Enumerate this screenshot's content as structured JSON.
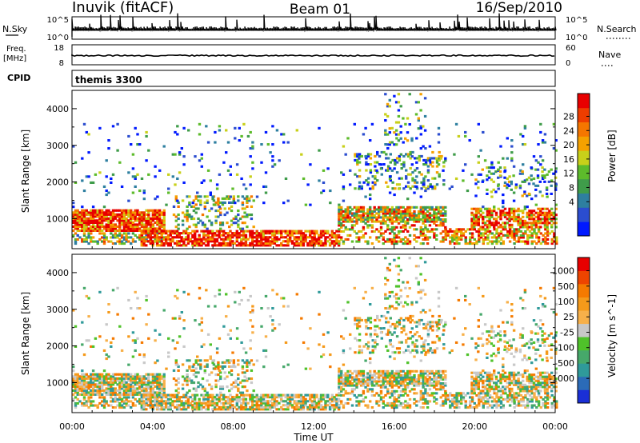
{
  "header": {
    "station": "Inuvik (fitACF)",
    "beam": "Beam 01",
    "date": "16/Sep/2010"
  },
  "top_panels": {
    "nsky_label": "N.Sky",
    "nsky_ticks": [
      "10^5",
      "10^0"
    ],
    "nsearch_label": "N.Search",
    "nsearch_ticks": [
      "10^5",
      "10^0"
    ],
    "freq_label": "Freq.",
    "freq_unit": "[MHz]",
    "freq_ticks": [
      "18",
      "8"
    ],
    "nave_label": "Nave",
    "nave_ticks": [
      "60",
      "0"
    ],
    "cpid_label": "CPID",
    "cpid_value": "themis 3300"
  },
  "chart_data": [
    {
      "type": "heatmap",
      "panel": "power",
      "ylabel": "Slant Range [km]",
      "ylim": [
        180,
        4500
      ],
      "xlim": [
        0,
        24
      ],
      "yticks": [
        "1000",
        "2000",
        "3000",
        "4000"
      ],
      "colorbar": {
        "label": "Power [dB]",
        "ticks": [
          "28",
          "24",
          "20",
          "16",
          "12",
          "8",
          "4"
        ],
        "colors": [
          "#0019ff",
          "#2b4dcf",
          "#2e7fa0",
          "#3f9c4a",
          "#5dbb2b",
          "#c8d01a",
          "#f5a100",
          "#f57600",
          "#ee3d00",
          "#e80000"
        ],
        "range": [
          0,
          30
        ]
      }
    },
    {
      "type": "heatmap",
      "panel": "velocity",
      "ylabel": "Slant Range [km]",
      "ylim": [
        180,
        4500
      ],
      "xlim": [
        0,
        24
      ],
      "yticks": [
        "1000",
        "2000",
        "3000",
        "4000"
      ],
      "colorbar": {
        "label": "Velocity [m s^-1]",
        "ticks": [
          "1000",
          "500",
          "100",
          "25",
          "-25",
          "-100",
          "-500",
          "-1000"
        ],
        "colors": [
          "#1a2fd6",
          "#2b6bb8",
          "#2f9a9a",
          "#46a86a",
          "#4fc22a",
          "#c8c8c8",
          "#f7b04a",
          "#f59a1a",
          "#f57a00",
          "#ee4400",
          "#e80000"
        ]
      }
    }
  ],
  "xaxis": {
    "label": "Time UT",
    "ticks": [
      "00:00",
      "04:00",
      "08:00",
      "12:00",
      "16:00",
      "20:00",
      "00:00"
    ]
  }
}
